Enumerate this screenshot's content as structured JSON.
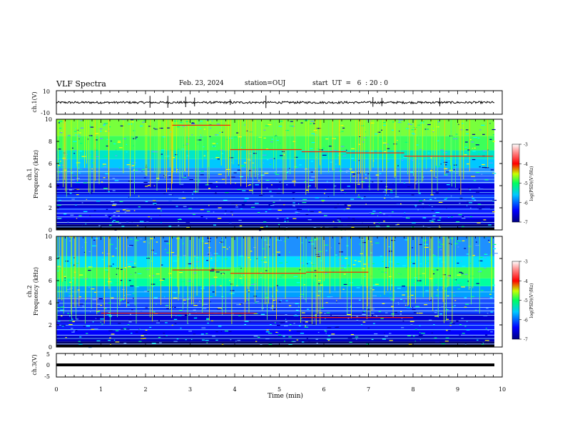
{
  "header": {
    "title": "VLF Spectra",
    "date": "Feb. 23, 2024",
    "station": "station=OUJ",
    "start": "start  UT  =   6  : 20 : 0"
  },
  "chart_data": [
    {
      "type": "line",
      "panel": "ch1-waveform",
      "ylabel": "ch.1(V)",
      "ylim": [
        -10,
        10
      ],
      "yticks": [
        "10",
        "-10"
      ],
      "xlim": [
        0,
        10
      ],
      "baseline": 0,
      "trace_color": "#000000"
    },
    {
      "type": "heatmap",
      "panel": "ch1-spectrogram",
      "ylabel": [
        "ch.1",
        "Frequency (kHz)"
      ],
      "ylim": [
        0,
        10
      ],
      "yticks": [
        "0",
        "2",
        "4",
        "6",
        "8",
        "10"
      ],
      "xlim": [
        0,
        10
      ],
      "colorbar": {
        "label": "log(PSD)(V²/Hz)",
        "range": [
          -7,
          -3
        ],
        "ticks": [
          "-3",
          "-4",
          "-5",
          "-6",
          "-7"
        ]
      },
      "red_bands_khz": [
        {
          "t": [
            2.6,
            3.9
          ],
          "f": 9.5
        },
        {
          "t": [
            3.9,
            5.5
          ],
          "f": 7.3
        },
        {
          "t": [
            5.5,
            6.5
          ],
          "f": 7.1
        },
        {
          "t": [
            6.5,
            7.8
          ],
          "f": 7.0
        },
        {
          "t": [
            7.8,
            9.8
          ],
          "f": 6.7
        }
      ]
    },
    {
      "type": "heatmap",
      "panel": "ch2-spectrogram",
      "ylabel": [
        "ch.2",
        "Frequency (kHz)"
      ],
      "ylim": [
        0,
        10
      ],
      "yticks": [
        "0",
        "2",
        "4",
        "6",
        "8",
        "10"
      ],
      "xlim": [
        0,
        10
      ],
      "colorbar": {
        "label": "log(PSD)(V²/Hz)",
        "range": [
          -7,
          -3
        ],
        "ticks": [
          "-3",
          "-4",
          "-5",
          "-6",
          "-7"
        ]
      },
      "red_bands_khz": [
        {
          "t": [
            2.6,
            3.9
          ],
          "f": 7.0
        },
        {
          "t": [
            3.9,
            5.6
          ],
          "f": 6.7
        },
        {
          "t": [
            5.6,
            7.0
          ],
          "f": 6.8
        },
        {
          "t": [
            1.0,
            4.5
          ],
          "f": 3.1
        },
        {
          "t": [
            5.5,
            8.0
          ],
          "f": 2.7
        }
      ]
    },
    {
      "type": "line",
      "panel": "ch3-waveform",
      "ylabel": "ch.3(V)",
      "ylim": [
        -5,
        5
      ],
      "yticks": [
        "5",
        "0",
        "-5"
      ],
      "xlim": [
        0,
        10
      ],
      "baseline": 0,
      "trace_color": "#000000"
    }
  ],
  "xaxis": {
    "label": "Time (min)",
    "ticks": [
      "0",
      "1",
      "2",
      "3",
      "4",
      "5",
      "6",
      "7",
      "8",
      "9",
      "10"
    ]
  }
}
